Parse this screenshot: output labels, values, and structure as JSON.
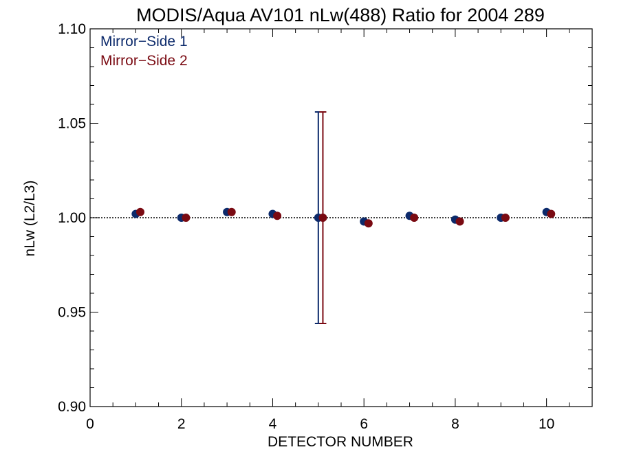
{
  "chart_data": {
    "type": "scatter",
    "title": "MODIS/Aqua AV101 nLw(488) Ratio for 2004 289",
    "xlabel": "DETECTOR NUMBER",
    "ylabel": "nLw (L2/L3)",
    "xlim": [
      0,
      11
    ],
    "ylim": [
      0.9,
      1.1
    ],
    "x_ticks": [
      0,
      2,
      4,
      6,
      8,
      10
    ],
    "x_tick_labels": [
      "0",
      "2",
      "4",
      "6",
      "8",
      "10"
    ],
    "y_ticks": [
      0.9,
      0.95,
      1.0,
      1.05,
      1.1
    ],
    "y_tick_labels": [
      "0.90",
      "0.95",
      "1.00",
      "1.05",
      "1.10"
    ],
    "reference_line": {
      "y": 1.0,
      "style": "dotted"
    },
    "legend_position": "top-left",
    "series": [
      {
        "name": "Mirror−Side 1",
        "color": "#0c2a6b",
        "x": [
          1,
          2,
          3,
          4,
          5,
          6,
          7,
          8,
          9,
          10
        ],
        "values": [
          1.002,
          1.0,
          1.003,
          1.002,
          1.0,
          0.998,
          1.001,
          0.999,
          1.0,
          1.003
        ],
        "error_bars": [
          {
            "x": 5,
            "low": 0.944,
            "high": 1.056
          }
        ]
      },
      {
        "name": "Mirror−Side 2",
        "color": "#7a0a12",
        "x": [
          1.1,
          2.1,
          3.1,
          4.1,
          5.1,
          6.1,
          7.1,
          8.1,
          9.1,
          10.1
        ],
        "values": [
          1.003,
          1.0,
          1.003,
          1.001,
          1.0,
          0.997,
          1.0,
          0.998,
          1.0,
          1.002
        ],
        "error_bars": [
          {
            "x": 5.1,
            "low": 0.944,
            "high": 1.056
          }
        ]
      }
    ]
  }
}
